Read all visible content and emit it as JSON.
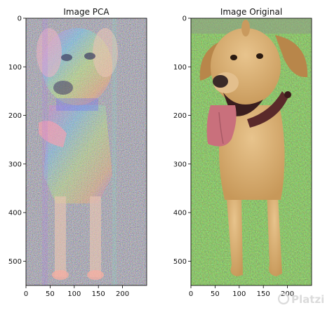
{
  "chart_data": [
    {
      "type": "image",
      "title": "Image PCA",
      "xlim": [
        0,
        250
      ],
      "ylim": [
        550,
        0
      ],
      "xticks": [
        0,
        50,
        100,
        150,
        200
      ],
      "yticks": [
        0,
        100,
        200,
        300,
        400,
        500
      ],
      "grid": false
    },
    {
      "type": "image",
      "title": "Image Original",
      "xlim": [
        0,
        250
      ],
      "ylim": [
        550,
        0
      ],
      "xticks": [
        0,
        50,
        100,
        150,
        200
      ],
      "yticks": [
        0,
        100,
        200,
        300,
        400,
        500
      ],
      "grid": false
    }
  ],
  "watermark": {
    "text": "Platzi"
  },
  "colors": {
    "grass": "#4f7a2e",
    "dog_fur": "#d9b07a",
    "tongue": "#c9707c",
    "collar": "#5a2a2a",
    "pca_noise_bg": "#7f7a8a"
  }
}
